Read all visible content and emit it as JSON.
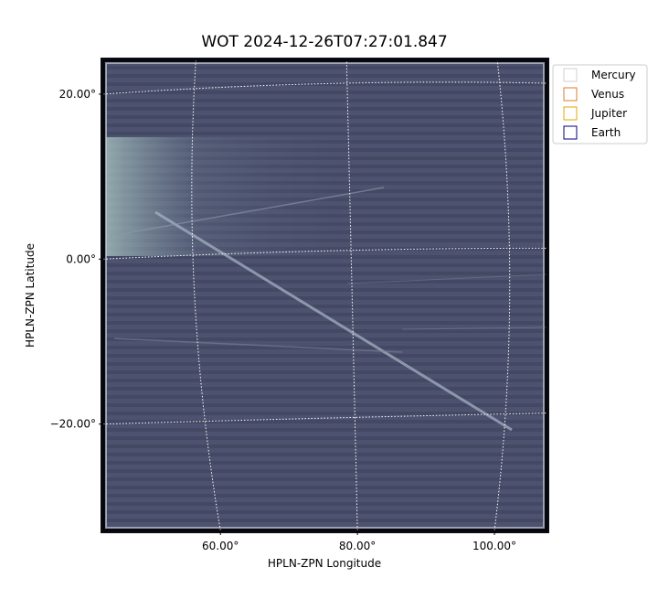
{
  "chart_data": {
    "type": "image",
    "title": "WOT 2024-12-26T07:27:01.847",
    "xlabel": "HPLN-ZPN Longitude",
    "ylabel": "HPLN-ZPN Latitude",
    "xlim": [
      42.9,
      107.6
    ],
    "ylim": [
      -32.9,
      24.1
    ],
    "xticks": [
      {
        "value": 60,
        "label": "60.00°"
      },
      {
        "value": 80,
        "label": "80.00°"
      },
      {
        "value": 100,
        "label": "100.00°"
      }
    ],
    "yticks": [
      {
        "value": 20,
        "label": "20.00°"
      },
      {
        "value": 0,
        "label": "0.00°"
      },
      {
        "value": -20,
        "label": "−20.00°"
      }
    ],
    "grid": true,
    "series": [
      {
        "name": "Mercury",
        "color": "#d0d0d0"
      },
      {
        "name": "Venus",
        "color": "#e07a30"
      },
      {
        "name": "Jupiter",
        "color": "#e0a800"
      },
      {
        "name": "Earth",
        "color": "#000080"
      }
    ],
    "legend": "upper right"
  }
}
